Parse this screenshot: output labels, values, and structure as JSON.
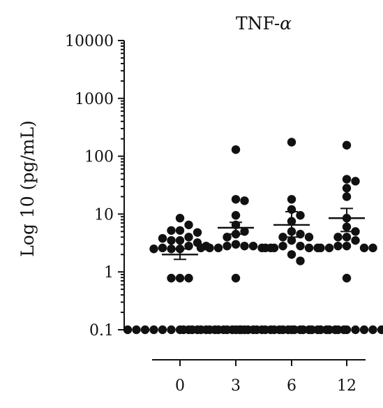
{
  "chart_data": {
    "type": "scatter",
    "title_prefix": "TNF-",
    "title_symbol": "α",
    "ylabel": "Log 10 (pg/mL)",
    "xlabel": "",
    "yscale": "log",
    "ylim": [
      0.1,
      10000
    ],
    "yticks": [
      {
        "value": 10000,
        "label": "10000"
      },
      {
        "value": 1000,
        "label": "1000"
      },
      {
        "value": 100,
        "label": "100"
      },
      {
        "value": 10,
        "label": "10"
      },
      {
        "value": 1,
        "label": "1"
      },
      {
        "value": 0.1,
        "label": "0.1"
      }
    ],
    "categories": [
      "0",
      "3",
      "6",
      "12"
    ],
    "groups": [
      {
        "category": "0",
        "mean": 2.0,
        "sem_low": 1.65,
        "sem_high": 2.5,
        "points": [
          8.5,
          6.5,
          5.2,
          5.2,
          4.8,
          4.0,
          3.8,
          3.5,
          3.5,
          3.2,
          2.8,
          2.8,
          2.6,
          2.5,
          2.5,
          2.5,
          0.78,
          0.78,
          0.78,
          0.1,
          0.1,
          0.1,
          0.1,
          0.1,
          0.1,
          0.1,
          0.1,
          0.1,
          0.1,
          0.1,
          0.1,
          0.1,
          0.1
        ]
      },
      {
        "category": "3",
        "mean": 5.8,
        "sem_low": 4.5,
        "sem_high": 7.2,
        "points": [
          130,
          18,
          17,
          9.5,
          6.5,
          5.0,
          4.5,
          4.0,
          3.0,
          2.8,
          2.8,
          2.8,
          2.6,
          2.6,
          2.6,
          2.6,
          2.6,
          0.78,
          0.1,
          0.1,
          0.1,
          0.1,
          0.1,
          0.1,
          0.1,
          0.1,
          0.1,
          0.1,
          0.1,
          0.1,
          0.1
        ]
      },
      {
        "category": "6",
        "mean": 6.5,
        "sem_low": 4.0,
        "sem_high": 11,
        "points": [
          175,
          18,
          12,
          9.5,
          7.5,
          5.0,
          4.5,
          4.0,
          4.0,
          3.5,
          2.8,
          2.8,
          2.6,
          2.6,
          2.6,
          2.6,
          2.0,
          1.55,
          0.1,
          0.1,
          0.1,
          0.1,
          0.1,
          0.1,
          0.1,
          0.1,
          0.1,
          0.1,
          0.1,
          0.1,
          0.1
        ]
      },
      {
        "category": "12",
        "mean": 8.5,
        "sem_low": 5.0,
        "sem_high": 12.5,
        "points": [
          155,
          40,
          37,
          28,
          20,
          8.5,
          6.0,
          5.0,
          4.0,
          4.0,
          3.5,
          2.8,
          2.8,
          2.6,
          2.6,
          2.6,
          2.6,
          0.78,
          0.1,
          0.1,
          0.1,
          0.1,
          0.1,
          0.1,
          0.1,
          0.1,
          0.1,
          0.1,
          0.1,
          0.1,
          0.1
        ]
      }
    ],
    "grid": false,
    "point_color": "#111111"
  }
}
